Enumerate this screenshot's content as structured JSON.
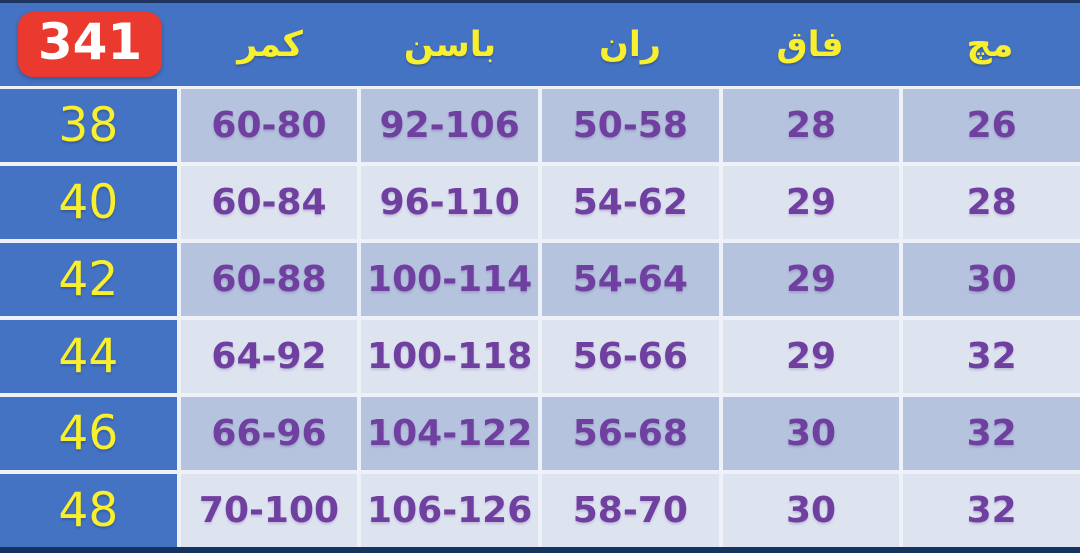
{
  "badge": {
    "label": "341"
  },
  "chart_data": {
    "type": "table",
    "badge": "341",
    "column_headers": [
      "کمر",
      "باسن",
      "ران",
      "فاق",
      "مچ"
    ],
    "rows": [
      {
        "size": "38",
        "values": [
          "60-80",
          "92-106",
          "50-58",
          "28",
          "26"
        ]
      },
      {
        "size": "40",
        "values": [
          "60-84",
          "96-110",
          "54-62",
          "29",
          "28"
        ]
      },
      {
        "size": "42",
        "values": [
          "60-88",
          "100-114",
          "54-64",
          "29",
          "30"
        ]
      },
      {
        "size": "44",
        "values": [
          "64-92",
          "100-118",
          "56-66",
          "29",
          "32"
        ]
      },
      {
        "size": "46",
        "values": [
          "66-96",
          "104-122",
          "56-68",
          "30",
          "32"
        ]
      },
      {
        "size": "48",
        "values": [
          "70-100",
          "106-126",
          "58-70",
          "30",
          "32"
        ]
      }
    ]
  },
  "colors": {
    "header_blue": "#4473c4",
    "size_column_blue": "#4473c4",
    "row_odd_bg": "#b5c3de",
    "row_even_bg": "#dee3f0",
    "header_text_yellow": "#f8ef2e",
    "value_text_purple": "#7040a0",
    "badge_red": "#ea392e",
    "badge_text": "#ffffff",
    "bottom_strip_navy": "#14345f"
  }
}
